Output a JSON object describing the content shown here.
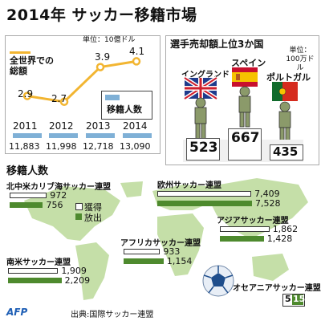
{
  "title": "2014年 サッカー移籍市場",
  "chart_data": [
    {
      "type": "line",
      "title": "全世界での総額",
      "unit": "単位：10億ドル",
      "x": [
        "2011",
        "2012",
        "2013",
        "2014"
      ],
      "values": [
        2.9,
        2.7,
        3.9,
        4.1
      ],
      "bar_legend": "移籍人数",
      "bar_values": [
        "11,883",
        "11,998",
        "12,718",
        "13,090"
      ],
      "colors": {
        "line": "#f2b531",
        "bar": "#7fb0d6"
      }
    },
    {
      "type": "bar",
      "title": "選手売却額上位3か国",
      "unit": "単位：100万ドル",
      "categories": [
        "イングランド",
        "スペイン",
        "ポルトガル"
      ],
      "values": [
        523,
        667,
        435
      ],
      "flag_icons": [
        "uk-flag-icon",
        "spain-flag-icon",
        "portugal-flag-icon"
      ]
    },
    {
      "type": "bar",
      "title": "移籍人数",
      "legend": {
        "gain": "獲得",
        "release": "放出"
      },
      "colors": {
        "gain": "#ffffff",
        "release": "#4e8a2e",
        "map": "#c5dfa8"
      },
      "regions": [
        {
          "name": "北中米カリブ海サッカー連盟",
          "gain": "972",
          "release": "756"
        },
        {
          "name": "欧州サッカー連盟",
          "gain": "7,409",
          "release": "7,528"
        },
        {
          "name": "アジアサッカー連盟",
          "gain": "1,862",
          "release": "1,428"
        },
        {
          "name": "アフリカサッカー連盟",
          "gain": "933",
          "release": "1,154"
        },
        {
          "name": "南米サッカー連盟",
          "gain": "1,909",
          "release": "2,209"
        },
        {
          "name": "オセアニアサッカー連盟",
          "gain": "5",
          "release": "15"
        }
      ]
    }
  ],
  "footer": {
    "logo": "AFP",
    "source": "出典:国際サッカー連盟"
  }
}
